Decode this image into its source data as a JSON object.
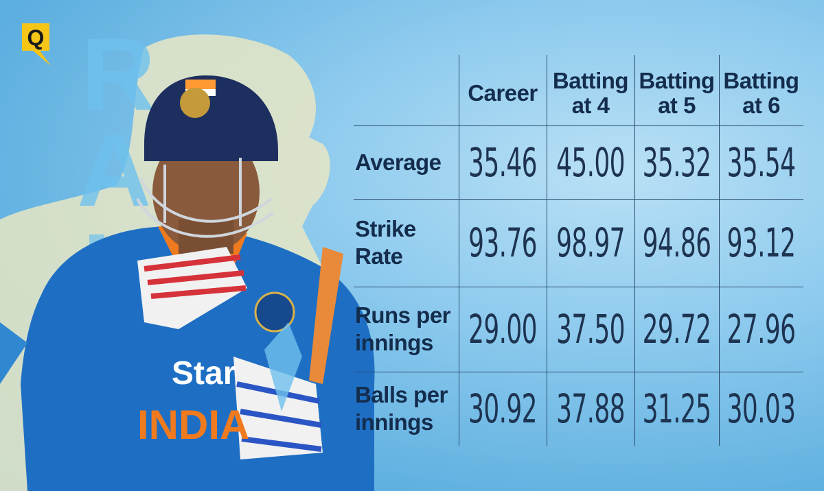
{
  "brand": {
    "logo_letter": "Q",
    "logo_color": "#f5c518"
  },
  "watermark": {
    "text": "RAINA",
    "color": "#6fc1ee"
  },
  "chart_data": {
    "type": "table",
    "columns": [
      "Career",
      "Batting\nat 4",
      "Batting\nat 5",
      "Batting\nat 6"
    ],
    "rows": [
      {
        "label": "Average",
        "values": [
          "35.46",
          "45.00",
          "35.32",
          "35.54"
        ]
      },
      {
        "label": "Strike\nRate",
        "values": [
          "93.76",
          "98.97",
          "94.86",
          "93.12"
        ]
      },
      {
        "label": "Runs per\ninnings",
        "values": [
          "29.00",
          "37.50",
          "29.72",
          "27.96"
        ]
      },
      {
        "label": "Balls per\ninnings",
        "values": [
          "30.92",
          "37.88",
          "31.25",
          "30.03"
        ]
      }
    ]
  },
  "colors": {
    "text": "#142d4d",
    "grid": "#2a4a6e",
    "background": "#8fcbee",
    "accent_cream": "#e8e6c4"
  }
}
